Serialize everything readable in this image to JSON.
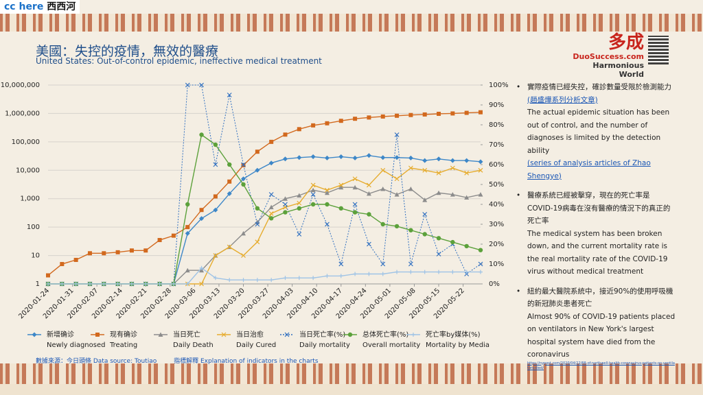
{
  "brand": {
    "latin": "cc here",
    "chinese": "西西河"
  },
  "header": {
    "title": "美國：失控的疫情，無效的醫療",
    "subtitle": "United States: Out-of-control epidemic, ineffective medical treatment"
  },
  "logo": {
    "mark": "多成",
    "site": "DuoSuccess.com",
    "motto": "Harmonious World"
  },
  "chart_data": {
    "type": "line",
    "ylog": true,
    "grid": true,
    "x": [
      "2020-01-24",
      "2020-01-28",
      "2020-02-01",
      "2020-02-05",
      "2020-02-09",
      "2020-02-13",
      "2020-02-17",
      "2020-02-21",
      "2020-02-25",
      "2020-02-29",
      "2020-03-04",
      "2020-03-08",
      "2020-03-12",
      "2020-03-16",
      "2020-03-20",
      "2020-03-24",
      "2020-03-28",
      "2020-04-01",
      "2020-04-05",
      "2020-04-09",
      "2020-04-13",
      "2020-04-17",
      "2020-04-21",
      "2020-04-25",
      "2020-04-29",
      "2020-05-03",
      "2020-05-07",
      "2020-05-11",
      "2020-05-15",
      "2020-05-19",
      "2020-05-23",
      "2020-05-27"
    ],
    "xlim": [
      "2020-01-24",
      "2020-05-27"
    ],
    "xticks": [
      "2020-01-24",
      "2020-01-31",
      "2020-02-07",
      "2020-02-14",
      "2020-02-21",
      "2020-02-28",
      "2020-03-06",
      "2020-03-13",
      "2020-03-20",
      "2020-03-27",
      "2020-04-03",
      "2020-04-10",
      "2020-04-17",
      "2020-04-24",
      "2020-05-01",
      "2020-05-08",
      "2020-05-15",
      "2020-05-22"
    ],
    "ylim": [
      1,
      10000000
    ],
    "yticks": [
      1,
      10,
      100,
      {
        "value": 1000,
        "label": "1,000"
      },
      {
        "value": 10000,
        "label": "10,000"
      },
      {
        "value": 100000,
        "label": "100,000"
      },
      {
        "value": 1000000,
        "label": "1,000,000"
      },
      {
        "value": 10000000,
        "label": "10,000,000"
      }
    ],
    "y2lim": [
      0,
      100
    ],
    "y2ticks": [
      {
        "value": 0,
        "label": "0%"
      },
      {
        "value": 10,
        "label": "10%"
      },
      {
        "value": 20,
        "label": "20%"
      },
      {
        "value": 30,
        "label": "30%"
      },
      {
        "value": 40,
        "label": "40%"
      },
      {
        "value": 50,
        "label": "50%"
      },
      {
        "value": 60,
        "label": "60%"
      },
      {
        "value": 70,
        "label": "70%"
      },
      {
        "value": 80,
        "label": "80%"
      },
      {
        "value": 90,
        "label": "90%"
      },
      {
        "value": 100,
        "label": "100%"
      }
    ],
    "series": [
      {
        "name": "新增确诊",
        "name_en": "Newly diagnosed",
        "color": "#3d87c8",
        "marker": "diamond",
        "values": [
          1,
          1,
          1,
          1,
          1,
          1,
          1,
          1,
          1,
          1,
          60,
          200,
          400,
          1500,
          5000,
          10000,
          18000,
          25000,
          28000,
          30000,
          27000,
          30000,
          27000,
          33000,
          28000,
          28000,
          27000,
          22000,
          25000,
          22000,
          22000,
          20000
        ]
      },
      {
        "name": "现有确诊",
        "name_en": "Treating",
        "color": "#d2691e",
        "marker": "square",
        "values": [
          2,
          5,
          7,
          12,
          12,
          13,
          15,
          15,
          35,
          50,
          100,
          400,
          1200,
          4000,
          15000,
          45000,
          100000,
          180000,
          280000,
          380000,
          450000,
          550000,
          650000,
          720000,
          780000,
          830000,
          880000,
          920000,
          970000,
          1000000,
          1050000,
          1100000
        ]
      },
      {
        "name": "当日死亡",
        "name_en": "Daily Death",
        "color": "#8c8c8c",
        "marker": "triangle",
        "values": [
          1,
          1,
          1,
          1,
          1,
          1,
          1,
          1,
          1,
          1,
          3,
          3,
          10,
          20,
          60,
          150,
          500,
          1000,
          1300,
          2000,
          1600,
          2500,
          2500,
          1500,
          2200,
          1400,
          2200,
          900,
          1600,
          1400,
          1100,
          1400
        ]
      },
      {
        "name": "当日治愈",
        "name_en": "Daily Cured",
        "color": "#e6ac2e",
        "marker": "x",
        "values": [
          1,
          1,
          1,
          1,
          1,
          1,
          1,
          1,
          1,
          1,
          1,
          1,
          10,
          20,
          10,
          30,
          300,
          500,
          700,
          3000,
          2000,
          3000,
          5000,
          3000,
          10000,
          5000,
          12000,
          10000,
          8000,
          12000,
          8000,
          10000
        ]
      },
      {
        "name": "当日死亡率(%)",
        "name_en": "Daily mortality",
        "color": "#2f6fc0",
        "marker": "x",
        "dotted": true,
        "axis": "y2",
        "values": [
          0,
          0,
          0,
          0,
          0,
          0,
          0,
          0,
          0,
          0,
          100,
          100,
          60,
          95,
          60,
          30,
          45,
          40,
          25,
          45,
          30,
          10,
          40,
          20,
          10,
          75,
          10,
          35,
          15,
          20,
          5,
          10
        ]
      },
      {
        "name": "总体死亡率(%)",
        "name_en": "Overall mortality",
        "color": "#5ca13b",
        "marker": "circle",
        "axis": "y2",
        "values": [
          0,
          0,
          0,
          0,
          0,
          0,
          0,
          0,
          0,
          0,
          40,
          75,
          70,
          60,
          50,
          38,
          33,
          36,
          38,
          40,
          40,
          38,
          36,
          35,
          30,
          29,
          27,
          25,
          23,
          21,
          19,
          17
        ]
      },
      {
        "name": "死亡率by媒体(%)",
        "name_en": "Mortality by Media",
        "color": "#9ec3e6",
        "marker": "plus",
        "axis": "y2",
        "values": [
          0,
          0,
          0,
          0,
          0,
          0,
          0,
          0,
          0,
          0,
          0,
          8,
          3,
          2,
          2,
          2,
          2,
          3,
          3,
          3,
          4,
          4,
          5,
          5,
          5,
          6,
          6,
          6,
          6,
          6,
          6,
          6
        ]
      }
    ]
  },
  "bullets": [
    {
      "zh": "實際疫情已經失控，確診數量受限於檢測能力",
      "zh_link": "(趙盛燁系列分析文章)",
      "en": "The actual epidemic situation has been out of control, and the number of diagnoses is limited by the detection ability",
      "en_link": "(series of analysis articles of Zhao Shengye)"
    },
    {
      "zh": "醫療系統已經被擊穿，現在的死亡率是COVID-19病毒在沒有醫療的情況下的真正的死亡率",
      "en": "The medical system has been broken down, and the current mortality rate is the real mortality rate of the COVID-19 virus without medical treatment"
    },
    {
      "zh": "紐約最大醫院系統中，接近90%的使用呼吸機的新冠肺炎患者死亡",
      "en": "Almost 90% of COVID-19 patients placed on ventilators in New York's largest hospital system have died from the coronavirus",
      "url": "https://nypost.com/2020/04/22/88-of-northwell-health-coronavirus-patients-on-ventilators-died/"
    }
  ],
  "footer": {
    "source": "數據來源：今日頭條 Data source: Toutiao",
    "explanation": "指標解釋 Explanation of indicators in the charts"
  }
}
